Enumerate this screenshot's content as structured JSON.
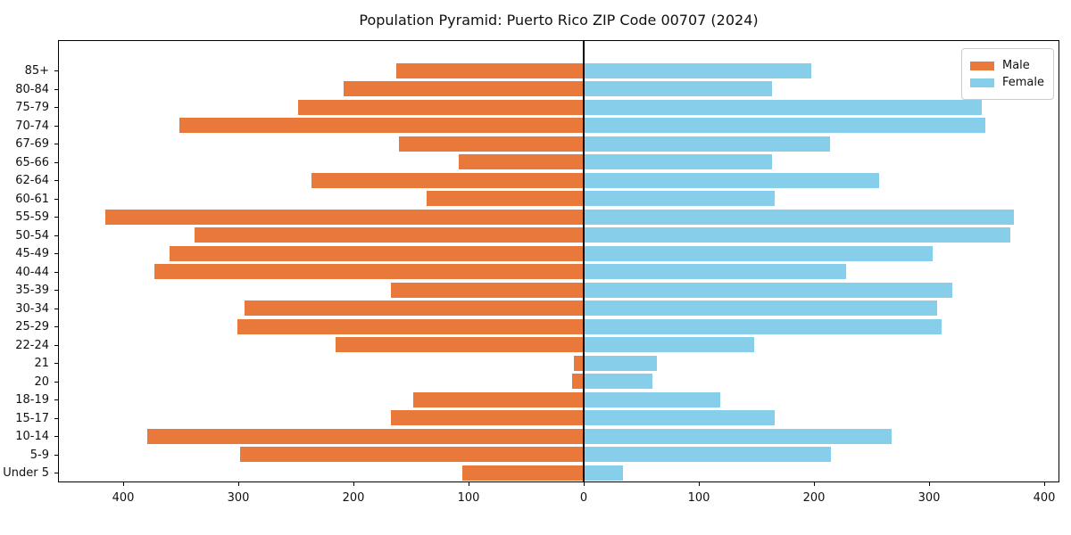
{
  "chart_data": {
    "type": "bar",
    "subtype": "population-pyramid-diverging-horizontal",
    "title": "Population Pyramid: Puerto Rico ZIP Code 00707 (2024)",
    "categories": [
      "85+",
      "80-84",
      "75-79",
      "70-74",
      "67-69",
      "65-66",
      "62-64",
      "60-61",
      "55-59",
      "50-54",
      "45-49",
      "40-44",
      "35-39",
      "30-34",
      "25-29",
      "22-24",
      "21",
      "20",
      "18-19",
      "15-17",
      "10-14",
      "5-9",
      "Under 5"
    ],
    "series": [
      {
        "name": "Male",
        "side": "left",
        "color": "#E8793B",
        "values": [
          162,
          208,
          247,
          350,
          160,
          108,
          236,
          136,
          415,
          337,
          359,
          372,
          167,
          294,
          300,
          215,
          8,
          9,
          147,
          167,
          378,
          298,
          105
        ]
      },
      {
        "name": "Female",
        "side": "right",
        "color": "#87CEEB",
        "values": [
          197,
          163,
          345,
          348,
          213,
          163,
          256,
          165,
          373,
          370,
          302,
          227,
          319,
          306,
          310,
          147,
          63,
          59,
          118,
          165,
          267,
          214,
          33
        ]
      }
    ],
    "x_axis": {
      "tick_values": [
        -400,
        -300,
        -200,
        -100,
        0,
        100,
        200,
        300,
        400
      ],
      "tick_labels": [
        "400",
        "300",
        "200",
        "100",
        "0",
        "100",
        "200",
        "300",
        "400"
      ],
      "xlim": [
        -456,
        414
      ],
      "grid": false
    },
    "y_axis": {
      "inverted": false,
      "label": ""
    },
    "zero_line": true,
    "legend": {
      "position": "upper-right",
      "entries": [
        "Male",
        "Female"
      ]
    },
    "colors": {
      "background": "#FFFFFF",
      "text": "#111111",
      "spine": "#000000"
    }
  }
}
